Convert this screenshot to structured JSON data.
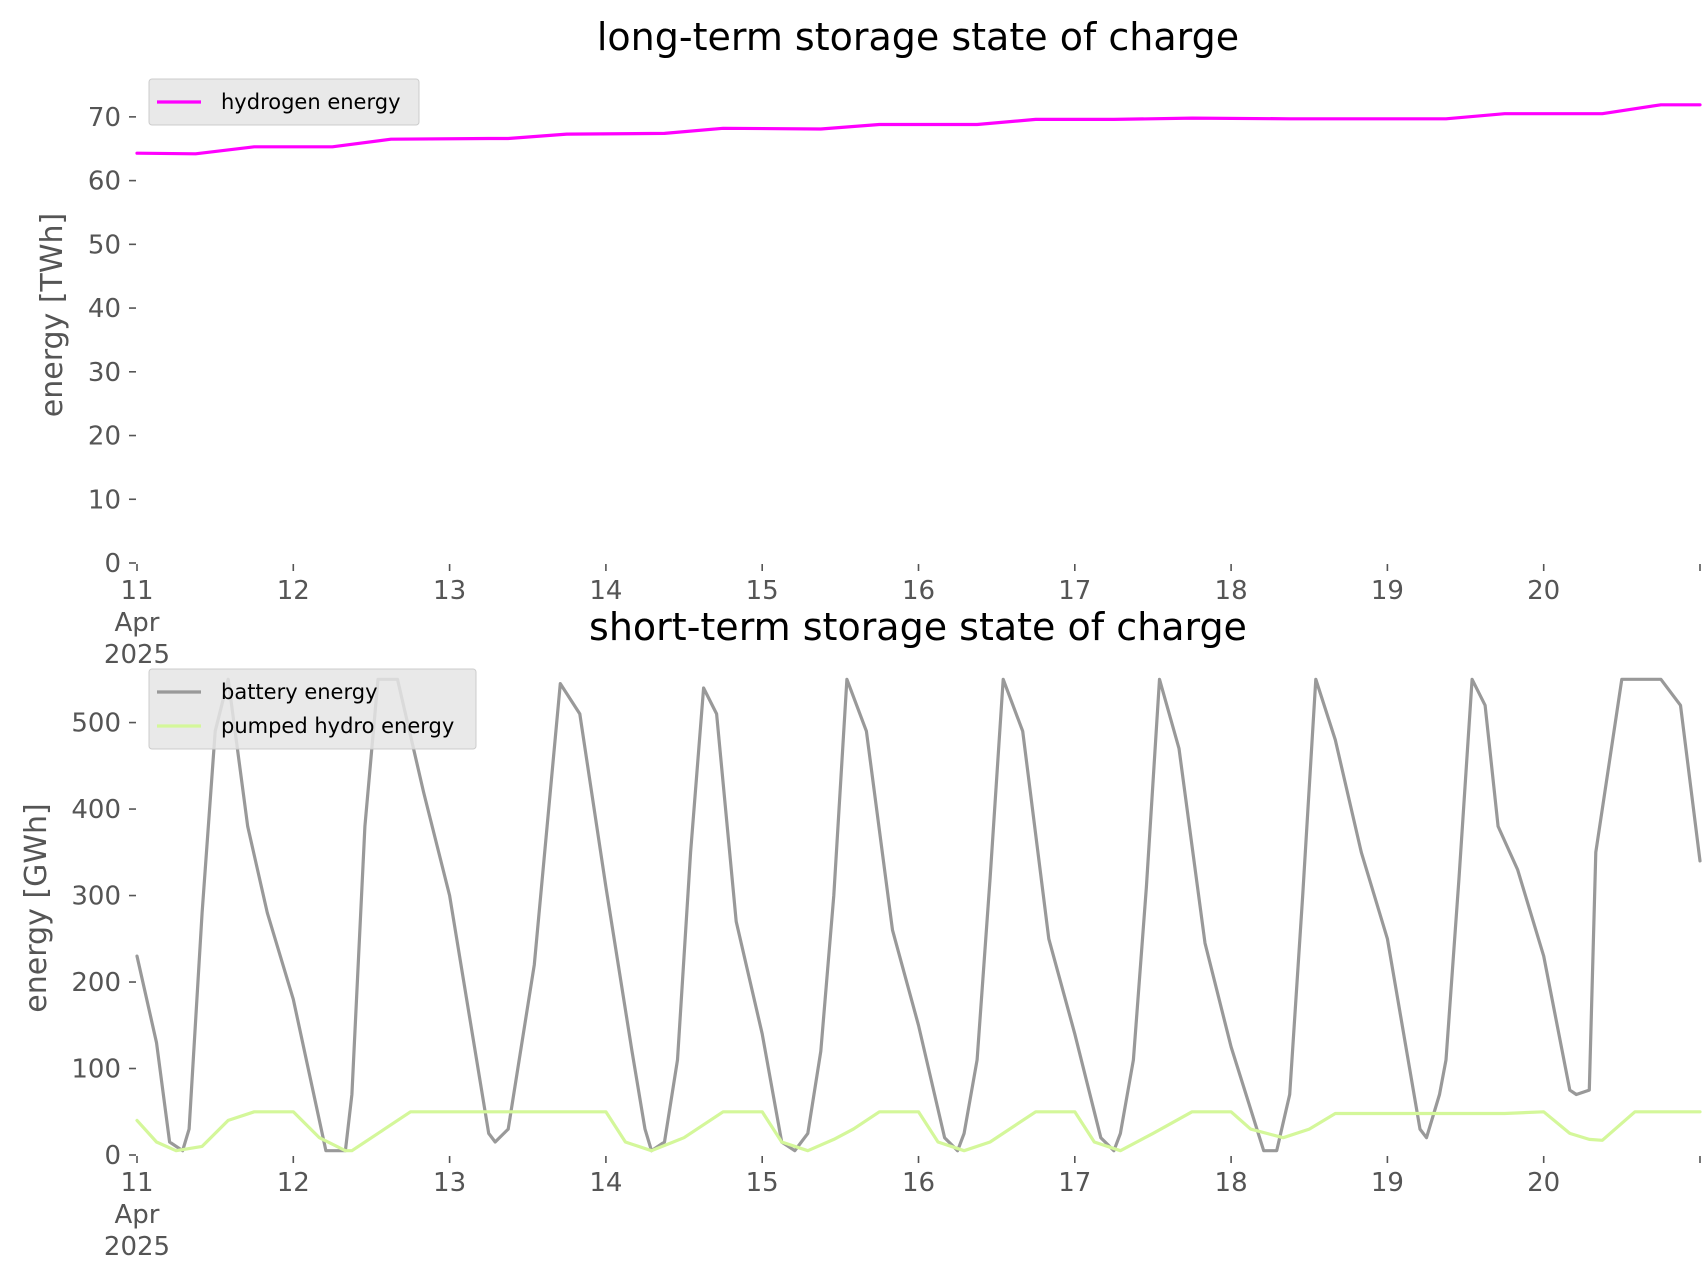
{
  "chart_data": [
    {
      "type": "line",
      "title": "long-term storage state of charge",
      "xlabel": "",
      "ylabel": "energy [TWh]",
      "xlim": [
        "2025-04-11 00:00",
        "2025-04-21 00:00"
      ],
      "ylim": [
        0,
        75
      ],
      "yticks": [
        0,
        10,
        20,
        30,
        40,
        50,
        60,
        70
      ],
      "xtick_labels": [
        {
          "date": "2025-04-11",
          "lines": [
            "11",
            "Apr",
            "2025"
          ]
        },
        {
          "date": "2025-04-12",
          "lines": [
            "12"
          ]
        },
        {
          "date": "2025-04-13",
          "lines": [
            "13"
          ]
        },
        {
          "date": "2025-04-14",
          "lines": [
            "14"
          ]
        },
        {
          "date": "2025-04-15",
          "lines": [
            "15"
          ]
        },
        {
          "date": "2025-04-16",
          "lines": [
            "16"
          ]
        },
        {
          "date": "2025-04-17",
          "lines": [
            "17"
          ]
        },
        {
          "date": "2025-04-18",
          "lines": [
            "18"
          ]
        },
        {
          "date": "2025-04-19",
          "lines": [
            "19"
          ]
        },
        {
          "date": "2025-04-20",
          "lines": [
            "20"
          ]
        }
      ],
      "grid": false,
      "legend_position": "top-left",
      "series": [
        {
          "name": "hydrogen energy",
          "color": "#ff00ff",
          "x": [
            "2025-04-11 00:00",
            "2025-04-11 09:00",
            "2025-04-11 18:00",
            "2025-04-12 06:00",
            "2025-04-12 15:00",
            "2025-04-13 06:00",
            "2025-04-13 09:00",
            "2025-04-13 18:00",
            "2025-04-14 09:00",
            "2025-04-14 18:00",
            "2025-04-15 09:00",
            "2025-04-15 18:00",
            "2025-04-16 09:00",
            "2025-04-16 18:00",
            "2025-04-17 06:00",
            "2025-04-17 18:00",
            "2025-04-18 09:00",
            "2025-04-18 18:00",
            "2025-04-19 09:00",
            "2025-04-19 18:00",
            "2025-04-20 09:00",
            "2025-04-20 18:00",
            "2025-04-21 00:00"
          ],
          "y": [
            64.3,
            64.2,
            65.3,
            65.3,
            66.5,
            66.6,
            66.6,
            67.3,
            67.4,
            68.2,
            68.1,
            68.8,
            68.8,
            69.6,
            69.6,
            69.8,
            69.7,
            69.7,
            69.7,
            70.5,
            70.5,
            71.9,
            71.9
          ]
        }
      ]
    },
    {
      "type": "line",
      "title": "short-term storage state of charge",
      "xlabel": "",
      "ylabel": "energy [GWh]",
      "xlim": [
        "2025-04-11 00:00",
        "2025-04-21 00:00"
      ],
      "ylim": [
        0,
        555
      ],
      "yticks": [
        0,
        100,
        200,
        300,
        400,
        500
      ],
      "xtick_labels": [
        {
          "date": "2025-04-11",
          "lines": [
            "11",
            "Apr",
            "2025"
          ]
        },
        {
          "date": "2025-04-12",
          "lines": [
            "12"
          ]
        },
        {
          "date": "2025-04-13",
          "lines": [
            "13"
          ]
        },
        {
          "date": "2025-04-14",
          "lines": [
            "14"
          ]
        },
        {
          "date": "2025-04-15",
          "lines": [
            "15"
          ]
        },
        {
          "date": "2025-04-16",
          "lines": [
            "16"
          ]
        },
        {
          "date": "2025-04-17",
          "lines": [
            "17"
          ]
        },
        {
          "date": "2025-04-18",
          "lines": [
            "18"
          ]
        },
        {
          "date": "2025-04-19",
          "lines": [
            "19"
          ]
        },
        {
          "date": "2025-04-20",
          "lines": [
            "20"
          ]
        }
      ],
      "grid": false,
      "legend_position": "top-left",
      "series": [
        {
          "name": "battery energy",
          "color": "#999999",
          "x": [
            "2025-04-11 00:00",
            "2025-04-11 03:00",
            "2025-04-11 05:00",
            "2025-04-11 07:00",
            "2025-04-11 08:00",
            "2025-04-11 10:00",
            "2025-04-11 12:00",
            "2025-04-11 14:00",
            "2025-04-11 17:00",
            "2025-04-11 20:00",
            "2025-04-12 00:00",
            "2025-04-12 05:00",
            "2025-04-12 08:00",
            "2025-04-12 09:00",
            "2025-04-12 11:00",
            "2025-04-12 13:00",
            "2025-04-12 16:00",
            "2025-04-12 20:00",
            "2025-04-13 00:00",
            "2025-04-13 06:00",
            "2025-04-13 07:00",
            "2025-04-13 09:00",
            "2025-04-13 13:00",
            "2025-04-13 17:00",
            "2025-04-13 20:00",
            "2025-04-14 00:00",
            "2025-04-14 04:00",
            "2025-04-14 06:00",
            "2025-04-14 07:00",
            "2025-04-14 09:00",
            "2025-04-14 11:00",
            "2025-04-14 13:00",
            "2025-04-14 15:00",
            "2025-04-14 17:00",
            "2025-04-14 20:00",
            "2025-04-15 00:00",
            "2025-04-15 03:00",
            "2025-04-15 05:00",
            "2025-04-15 07:00",
            "2025-04-15 09:00",
            "2025-04-15 11:00",
            "2025-04-15 13:00",
            "2025-04-15 16:00",
            "2025-04-15 20:00",
            "2025-04-16 00:00",
            "2025-04-16 04:00",
            "2025-04-16 06:00",
            "2025-04-16 07:00",
            "2025-04-16 09:00",
            "2025-04-16 11:00",
            "2025-04-16 13:00",
            "2025-04-16 16:00",
            "2025-04-16 20:00",
            "2025-04-17 00:00",
            "2025-04-17 04:00",
            "2025-04-17 06:00",
            "2025-04-17 07:00",
            "2025-04-17 09:00",
            "2025-04-17 11:00",
            "2025-04-17 13:00",
            "2025-04-17 16:00",
            "2025-04-17 20:00",
            "2025-04-18 00:00",
            "2025-04-18 05:00",
            "2025-04-18 07:00",
            "2025-04-18 09:00",
            "2025-04-18 11:00",
            "2025-04-18 13:00",
            "2025-04-18 16:00",
            "2025-04-18 20:00",
            "2025-04-19 00:00",
            "2025-04-19 05:00",
            "2025-04-19 06:00",
            "2025-04-19 08:00",
            "2025-04-19 09:00",
            "2025-04-19 11:00",
            "2025-04-19 13:00",
            "2025-04-19 15:00",
            "2025-04-19 17:00",
            "2025-04-19 20:00",
            "2025-04-20 00:00",
            "2025-04-20 04:00",
            "2025-04-20 05:00",
            "2025-04-20 07:00",
            "2025-04-20 08:00",
            "2025-04-20 12:00",
            "2025-04-20 14:00",
            "2025-04-20 18:00",
            "2025-04-20 21:00",
            "2025-04-21 00:00"
          ],
          "y": [
            230,
            130,
            15,
            5,
            30,
            280,
            490,
            550,
            380,
            280,
            180,
            5,
            5,
            70,
            380,
            550,
            550,
            420,
            300,
            25,
            15,
            30,
            220,
            545,
            510,
            310,
            120,
            30,
            5,
            15,
            110,
            350,
            540,
            510,
            270,
            140,
            15,
            5,
            25,
            120,
            300,
            550,
            490,
            260,
            150,
            20,
            5,
            25,
            110,
            320,
            550,
            490,
            250,
            140,
            20,
            5,
            25,
            110,
            310,
            550,
            470,
            245,
            125,
            5,
            5,
            70,
            300,
            550,
            480,
            350,
            250,
            30,
            20,
            70,
            110,
            320,
            550,
            520,
            380,
            330,
            230,
            75,
            70,
            75,
            350,
            550,
            550,
            550,
            520,
            340
          ]
        },
        {
          "name": "pumped hydro energy",
          "color": "#d4f79a",
          "x": [
            "2025-04-11 00:00",
            "2025-04-11 03:00",
            "2025-04-11 06:00",
            "2025-04-11 10:00",
            "2025-04-11 14:00",
            "2025-04-11 18:00",
            "2025-04-12 00:00",
            "2025-04-12 04:00",
            "2025-04-12 08:00",
            "2025-04-12 09:00",
            "2025-04-12 14:00",
            "2025-04-12 18:00",
            "2025-04-13 06:00",
            "2025-04-13 12:00",
            "2025-04-14 00:00",
            "2025-04-14 03:00",
            "2025-04-14 07:00",
            "2025-04-14 12:00",
            "2025-04-14 18:00",
            "2025-04-15 00:00",
            "2025-04-15 03:00",
            "2025-04-15 07:00",
            "2025-04-15 11:00",
            "2025-04-15 14:00",
            "2025-04-15 18:00",
            "2025-04-16 00:00",
            "2025-04-16 03:00",
            "2025-04-16 07:00",
            "2025-04-16 11:00",
            "2025-04-16 15:00",
            "2025-04-16 18:00",
            "2025-04-17 00:00",
            "2025-04-17 03:00",
            "2025-04-17 07:00",
            "2025-04-17 12:00",
            "2025-04-17 18:00",
            "2025-04-18 00:00",
            "2025-04-18 03:00",
            "2025-04-18 08:00",
            "2025-04-18 12:00",
            "2025-04-18 16:00",
            "2025-04-19 00:00",
            "2025-04-19 12:00",
            "2025-04-19 18:00",
            "2025-04-20 00:00",
            "2025-04-20 04:00",
            "2025-04-20 07:00",
            "2025-04-20 09:00",
            "2025-04-20 14:00",
            "2025-04-21 00:00"
          ],
          "y": [
            40,
            15,
            5,
            10,
            40,
            50,
            50,
            20,
            5,
            5,
            30,
            50,
            50,
            50,
            50,
            15,
            5,
            20,
            50,
            50,
            15,
            5,
            18,
            30,
            50,
            50,
            15,
            5,
            15,
            35,
            50,
            50,
            15,
            5,
            25,
            50,
            50,
            30,
            20,
            30,
            48,
            48,
            48,
            48,
            50,
            25,
            18,
            17,
            50,
            50
          ]
        }
      ]
    }
  ]
}
